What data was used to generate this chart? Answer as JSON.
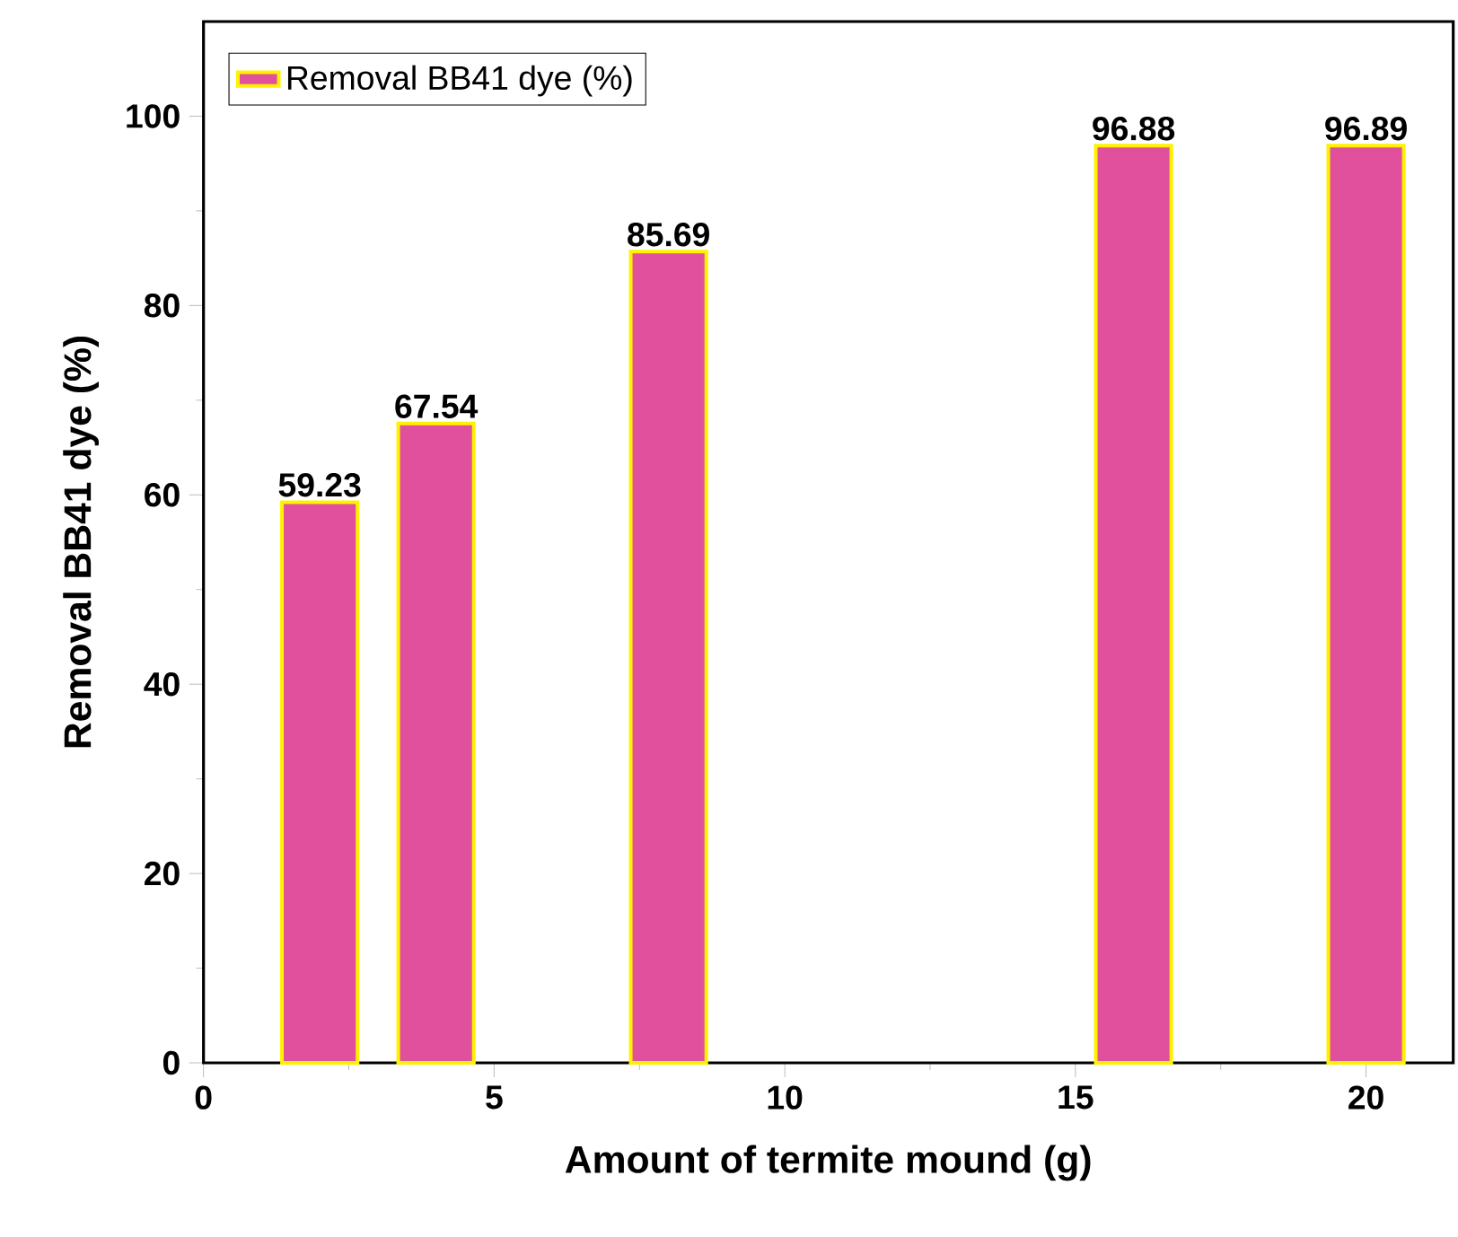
{
  "chart_data": {
    "type": "bar",
    "xlabel": "Amount of termite mound (g)",
    "ylabel": "Removal BB41 dye (%)",
    "x": [
      2,
      4,
      8,
      16,
      20
    ],
    "series": [
      {
        "name": "Removal BB41 dye (%)",
        "color": "#e0509c",
        "values": [
          59.23,
          67.54,
          85.69,
          96.88,
          96.89
        ]
      }
    ],
    "xlim": [
      0,
      21.5
    ],
    "ylim": [
      0,
      110
    ],
    "xticks": [
      0,
      5,
      10,
      15,
      20
    ],
    "yticks": [
      0,
      20,
      40,
      60,
      80,
      100
    ],
    "data_labels": true,
    "legend": "top left",
    "grid": false
  }
}
